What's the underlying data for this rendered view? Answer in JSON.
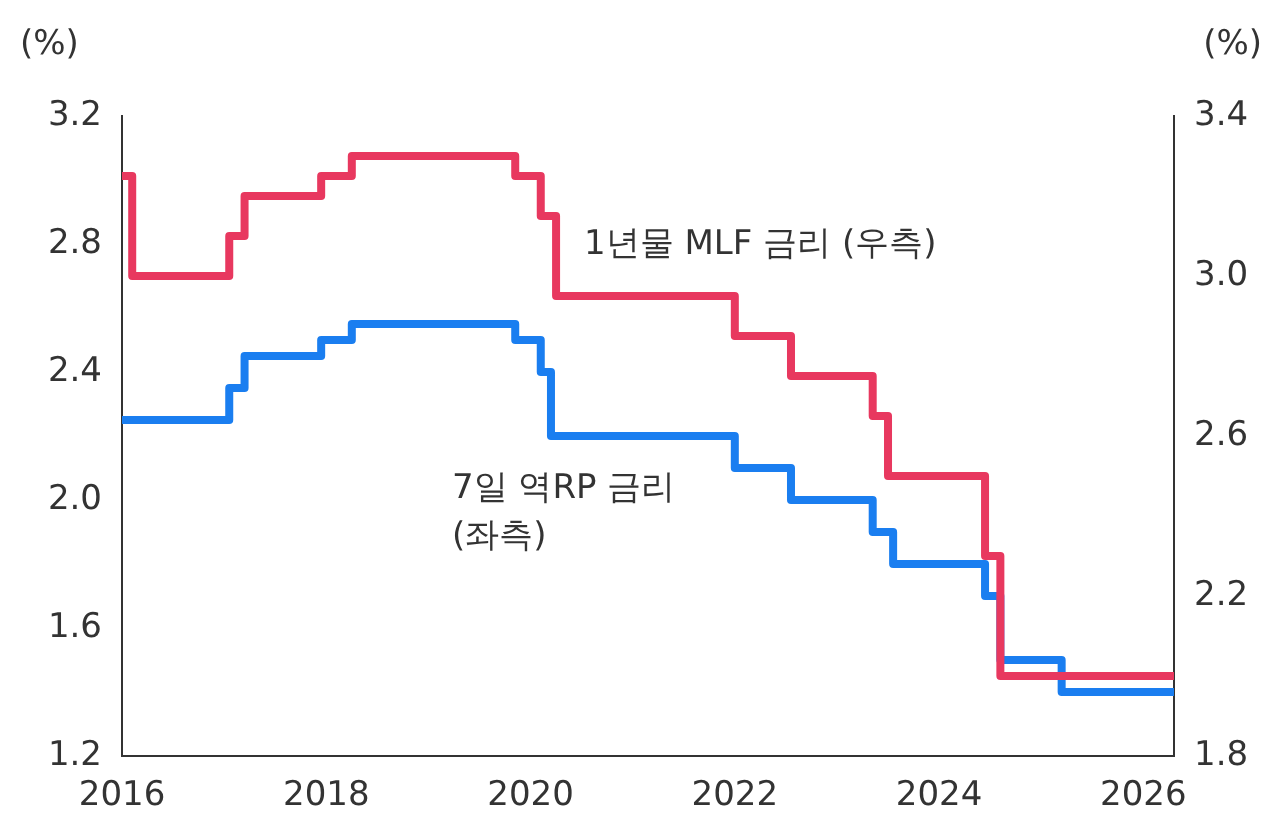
{
  "chart_data": {
    "type": "step",
    "ylabel": "(%)",
    "y2label": "(%)",
    "xlim": [
      2016,
      2026.3
    ],
    "xticks": [
      2016,
      2018,
      2020,
      2022,
      2024,
      2026
    ],
    "ylim": [
      1.2,
      3.2
    ],
    "yticks": [
      1.2,
      1.6,
      {
        "value": 2,
        "label": "2.0"
      },
      2.4,
      2.8,
      3.2
    ],
    "y2lim": [
      1.8,
      3.4
    ],
    "y2ticks": [
      1.8,
      2.2,
      2.6,
      {
        "value": 3,
        "label": "3.0"
      },
      3.4
    ],
    "grid": false,
    "legend": false,
    "line_style": "solid",
    "marker": "none",
    "series": [
      {
        "name": "1년물 MLF 금리 (우측)",
        "color": "#e8385f",
        "axis": "y2",
        "x": [
          2016,
          2016.1,
          2017.05,
          2017.2,
          2017.95,
          2018.25,
          2019.85,
          2020.1,
          2020.25,
          2022.0,
          2022.55,
          2023.35,
          2023.5,
          2024.45,
          2024.6,
          2026.3
        ],
        "values": [
          3.25,
          3.0,
          3.1,
          3.2,
          3.25,
          3.3,
          3.25,
          3.15,
          2.95,
          2.85,
          2.75,
          2.65,
          2.5,
          2.3,
          2.0,
          2.0
        ]
      },
      {
        "name": "7일 역RP 금리 (좌측)",
        "color": "#1a7ef0",
        "x": [
          2016,
          2017.05,
          2017.2,
          2017.95,
          2018.25,
          2019.85,
          2020.1,
          2020.2,
          2022.0,
          2022.55,
          2023.35,
          2023.55,
          2024.45,
          2024.6,
          2025.2,
          2026.3
        ],
        "values": [
          2.25,
          2.35,
          2.45,
          2.5,
          2.55,
          2.5,
          2.4,
          2.2,
          2.1,
          2.0,
          1.9,
          1.8,
          1.7,
          1.5,
          1.4,
          1.4
        ]
      }
    ]
  }
}
